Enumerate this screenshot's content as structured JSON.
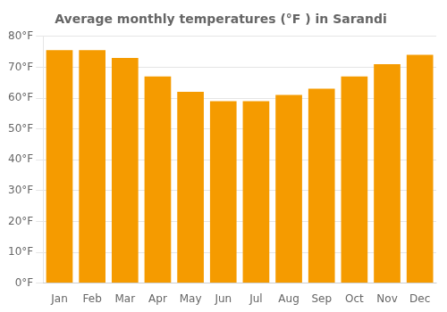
{
  "chart_data": {
    "type": "bar",
    "title": "Average monthly temperatures (°F ) in Sarandi",
    "categories": [
      "Jan",
      "Feb",
      "Mar",
      "Apr",
      "May",
      "Jun",
      "Jul",
      "Aug",
      "Sep",
      "Oct",
      "Nov",
      "Dec"
    ],
    "values": [
      75.5,
      75.5,
      73,
      67,
      62,
      59,
      59,
      61,
      63,
      67,
      71,
      74
    ],
    "color": "#F59B00",
    "ylim": [
      0,
      80
    ],
    "yticks": [
      {
        "value": 0,
        "label": "0°F"
      },
      {
        "value": 10,
        "label": "10°F"
      },
      {
        "value": 20,
        "label": "20°F"
      },
      {
        "value": 30,
        "label": "30°F"
      },
      {
        "value": 40,
        "label": "40°F"
      },
      {
        "value": 50,
        "label": "50°F"
      },
      {
        "value": 60,
        "label": "60°F"
      },
      {
        "value": 70,
        "label": "70°F"
      },
      {
        "value": 80,
        "label": "80°F"
      }
    ],
    "grid": true
  }
}
